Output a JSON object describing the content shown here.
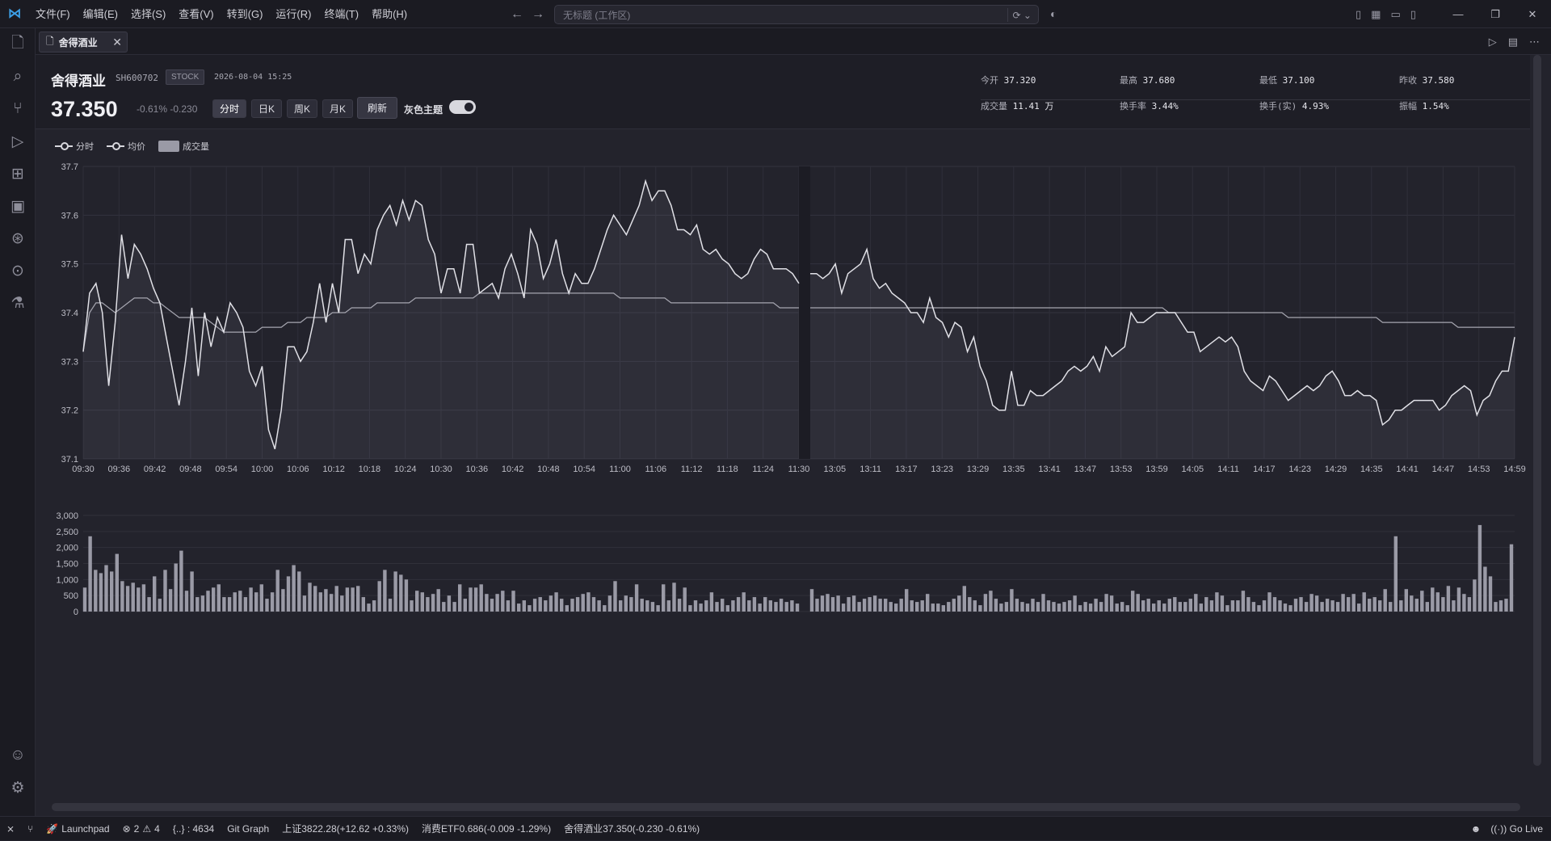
{
  "titlebar": {
    "menus": [
      "文件(F)",
      "编辑(E)",
      "选择(S)",
      "查看(V)",
      "转到(G)",
      "运行(R)",
      "终端(T)",
      "帮助(H)"
    ],
    "command_center": "无标题 (工作区)"
  },
  "tab": {
    "title": "舍得酒业"
  },
  "stock": {
    "name": "舍得酒业",
    "code": "SH600702",
    "type": "STOCK",
    "time": "2026-08-04 15:25",
    "price": "37.350",
    "change": "-0.61% -0.230",
    "periods": [
      "分时",
      "日K",
      "周K",
      "月K"
    ],
    "active_period": "分时",
    "refresh_label": "刷新",
    "theme_label": "灰色主题",
    "theme_toggle_on": true
  },
  "stats": {
    "open_k": "今开",
    "open_v": "37.320",
    "high_k": "最高",
    "high_v": "37.680",
    "low_k": "最低",
    "low_v": "37.100",
    "prev_k": "昨收",
    "prev_v": "37.580",
    "vol_k": "成交量",
    "vol_v": "11.41 万",
    "turn_k": "换手率",
    "turn_v": "3.44%",
    "turn_real_k": "换手(实)",
    "turn_real_v": "4.93%",
    "amp_k": "振幅",
    "amp_v": "1.54%"
  },
  "legend": {
    "line": "分时",
    "avg": "均价",
    "vol": "成交量"
  },
  "chart_data": {
    "type": "line",
    "ylim": [
      37.1,
      37.7
    ],
    "y_ticks": [
      "37.7",
      "37.6",
      "37.5",
      "37.4",
      "37.3",
      "37.2",
      "37.1"
    ],
    "x_ticks": [
      "09:30",
      "09:36",
      "09:42",
      "09:48",
      "09:54",
      "10:00",
      "10:06",
      "10:12",
      "10:18",
      "10:24",
      "10:30",
      "10:36",
      "10:42",
      "10:48",
      "10:54",
      "11:00",
      "11:06",
      "11:12",
      "11:18",
      "11:24",
      "11:30",
      "13:05",
      "13:11",
      "13:17",
      "13:23",
      "13:29",
      "13:35",
      "13:41",
      "13:47",
      "13:53",
      "13:59",
      "14:05",
      "14:11",
      "14:17",
      "14:23",
      "14:29",
      "14:35",
      "14:41",
      "14:47",
      "14:53",
      "14:59"
    ],
    "series": [
      {
        "name": "分时",
        "values": [
          37.32,
          37.44,
          37.46,
          37.4,
          37.25,
          37.38,
          37.56,
          37.47,
          37.54,
          37.52,
          37.49,
          37.45,
          37.42,
          37.35,
          37.28,
          37.21,
          37.3,
          37.41,
          37.27,
          37.4,
          37.33,
          37.39,
          37.36,
          37.42,
          37.4,
          37.37,
          37.28,
          37.25,
          37.29,
          37.16,
          37.12,
          37.2,
          37.33,
          37.33,
          37.3,
          37.32,
          37.38,
          37.46,
          37.38,
          37.46,
          37.4,
          37.55,
          37.55,
          37.48,
          37.52,
          37.5,
          37.57,
          37.6,
          37.62,
          37.58,
          37.63,
          37.59,
          37.63,
          37.62,
          37.55,
          37.52,
          37.44,
          37.49,
          37.49,
          37.44,
          37.54,
          37.54,
          37.44,
          37.45,
          37.46,
          37.43,
          37.49,
          37.52,
          37.48,
          37.43,
          37.57,
          37.54,
          37.47,
          37.5,
          37.55,
          37.48,
          37.44,
          37.48,
          37.46,
          37.46,
          37.49,
          37.53,
          37.57,
          37.6,
          37.58,
          37.56,
          37.59,
          37.62,
          37.67,
          37.63,
          37.65,
          37.65,
          37.62,
          37.57,
          37.57,
          37.56,
          37.58,
          37.53,
          37.52,
          37.53,
          37.51,
          37.5,
          37.48,
          37.47,
          37.48,
          37.51,
          37.53,
          37.52,
          37.49,
          37.49,
          37.49,
          37.48,
          37.46,
          37.48,
          37.48,
          37.47,
          37.48,
          37.5,
          37.44,
          37.48,
          37.49,
          37.5,
          37.53,
          37.47,
          37.45,
          37.46,
          37.44,
          37.43,
          37.42,
          37.4,
          37.4,
          37.38,
          37.43,
          37.39,
          37.38,
          37.35,
          37.38,
          37.37,
          37.32,
          37.35,
          37.29,
          37.26,
          37.21,
          37.2,
          37.2,
          37.28,
          37.21,
          37.21,
          37.24,
          37.23,
          37.23,
          37.24,
          37.25,
          37.26,
          37.28,
          37.29,
          37.28,
          37.29,
          37.31,
          37.28,
          37.33,
          37.31,
          37.32,
          37.33,
          37.4,
          37.38,
          37.38,
          37.39,
          37.4,
          37.4,
          37.4,
          37.4,
          37.38,
          37.36,
          37.36,
          37.32,
          37.33,
          37.34,
          37.35,
          37.34,
          37.35,
          37.33,
          37.28,
          37.26,
          37.25,
          37.24,
          37.27,
          37.26,
          37.24,
          37.22,
          37.23,
          37.24,
          37.25,
          37.24,
          37.25,
          37.27,
          37.28,
          37.26,
          37.23,
          37.23,
          37.24,
          37.23,
          37.23,
          37.22,
          37.17,
          37.18,
          37.2,
          37.2,
          37.21,
          37.22,
          37.22,
          37.22,
          37.22,
          37.2,
          37.21,
          37.23,
          37.24,
          37.25,
          37.24,
          37.19,
          37.22,
          37.23,
          37.26,
          37.28,
          37.28,
          37.35
        ]
      },
      {
        "name": "均价",
        "values": [
          37.32,
          37.4,
          37.42,
          37.42,
          37.41,
          37.4,
          37.41,
          37.42,
          37.43,
          37.43,
          37.43,
          37.42,
          37.42,
          37.41,
          37.4,
          37.39,
          37.39,
          37.39,
          37.39,
          37.39,
          37.38,
          37.37,
          37.36,
          37.36,
          37.36,
          37.36,
          37.36,
          37.36,
          37.37,
          37.37,
          37.37,
          37.37,
          37.38,
          37.38,
          37.38,
          37.39,
          37.39,
          37.39,
          37.39,
          37.4,
          37.4,
          37.4,
          37.41,
          37.41,
          37.41,
          37.41,
          37.42,
          37.42,
          37.42,
          37.42,
          37.42,
          37.42,
          37.43,
          37.43,
          37.43,
          37.43,
          37.43,
          37.43,
          37.43,
          37.43,
          37.43,
          37.43,
          37.44,
          37.44,
          37.44,
          37.44,
          37.44,
          37.44,
          37.44,
          37.44,
          37.44,
          37.44,
          37.44,
          37.44,
          37.44,
          37.44,
          37.44,
          37.44,
          37.44,
          37.44,
          37.44,
          37.44,
          37.44,
          37.44,
          37.43,
          37.43,
          37.43,
          37.43,
          37.43,
          37.43,
          37.43,
          37.43,
          37.42,
          37.42,
          37.42,
          37.42,
          37.42,
          37.42,
          37.42,
          37.42,
          37.42,
          37.42,
          37.42,
          37.42,
          37.42,
          37.42,
          37.42,
          37.42,
          37.42,
          37.41,
          37.41,
          37.41,
          37.41,
          37.41,
          37.41,
          37.41,
          37.41,
          37.41,
          37.41,
          37.41,
          37.41,
          37.41,
          37.41,
          37.41,
          37.41,
          37.41,
          37.41,
          37.41,
          37.41,
          37.41,
          37.41,
          37.41,
          37.41,
          37.41,
          37.41,
          37.41,
          37.41,
          37.41,
          37.41,
          37.41,
          37.41,
          37.41,
          37.41,
          37.41,
          37.41,
          37.41,
          37.41,
          37.41,
          37.41,
          37.41,
          37.41,
          37.41,
          37.41,
          37.41,
          37.41,
          37.41,
          37.41,
          37.41,
          37.41,
          37.41,
          37.41,
          37.41,
          37.41,
          37.41,
          37.41,
          37.41,
          37.41,
          37.41,
          37.41,
          37.41,
          37.4,
          37.4,
          37.4,
          37.4,
          37.4,
          37.4,
          37.4,
          37.4,
          37.4,
          37.4,
          37.4,
          37.4,
          37.4,
          37.4,
          37.4,
          37.4,
          37.4,
          37.4,
          37.4,
          37.39,
          37.39,
          37.39,
          37.39,
          37.39,
          37.39,
          37.39,
          37.39,
          37.39,
          37.39,
          37.39,
          37.39,
          37.39,
          37.39,
          37.39,
          37.38,
          37.38,
          37.38,
          37.38,
          37.38,
          37.38,
          37.38,
          37.38,
          37.38,
          37.38,
          37.38,
          37.38,
          37.37,
          37.37,
          37.37,
          37.37,
          37.37,
          37.37,
          37.37,
          37.37,
          37.37,
          37.37,
          37.37
        ]
      }
    ],
    "volume_ticks": [
      "3,000",
      "2,500",
      "2,000",
      "1,500",
      "1,000",
      "500",
      "0"
    ],
    "volume_max": 3000,
    "volume": [
      750,
      2350,
      1300,
      1200,
      1450,
      1250,
      1800,
      950,
      800,
      900,
      750,
      850,
      450,
      1100,
      400,
      1300,
      700,
      1500,
      1900,
      650,
      1250,
      450,
      500,
      650,
      750,
      850,
      450,
      450,
      600,
      650,
      450,
      750,
      600,
      850,
      400,
      600,
      1300,
      700,
      1100,
      1450,
      1250,
      500,
      900,
      800,
      600,
      700,
      550,
      800,
      500,
      750,
      750,
      800,
      450,
      250,
      350,
      950,
      1300,
      400,
      1250,
      1150,
      1000,
      350,
      650,
      600,
      450,
      550,
      700,
      300,
      500,
      300,
      850,
      400,
      750,
      750,
      850,
      550,
      400,
      550,
      650,
      350,
      650,
      250,
      350,
      200,
      400,
      450,
      350,
      500,
      600,
      400,
      200,
      400,
      450,
      550,
      600,
      450,
      350,
      200,
      500,
      950,
      350,
      500,
      450,
      850,
      400,
      350,
      300,
      200,
      850,
      350,
      900,
      400,
      750,
      200,
      350,
      250,
      350,
      600,
      300,
      400,
      200,
      350,
      450,
      600,
      350,
      450,
      250,
      450,
      350,
      300,
      400,
      300,
      350,
      250,
      700,
      400,
      500,
      550,
      450,
      500,
      250,
      450,
      500,
      300,
      400,
      450,
      500,
      400,
      400,
      300,
      250,
      400,
      700,
      350,
      300,
      350,
      550,
      250,
      250,
      200,
      300,
      400,
      500,
      800,
      450,
      350,
      200,
      550,
      650,
      400,
      250,
      300,
      700,
      400,
      300,
      250,
      400,
      300,
      550,
      350,
      300,
      250,
      300,
      350,
      500,
      200,
      300,
      250,
      400,
      300,
      550,
      500,
      250,
      300,
      200,
      650,
      550,
      350,
      400,
      250,
      350,
      250,
      400,
      450,
      300,
      300,
      400,
      550,
      250,
      450,
      350,
      600,
      500,
      200,
      350,
      350,
      650,
      450,
      300,
      200,
      350,
      600,
      450,
      350,
      250,
      200,
      400,
      450,
      300,
      550,
      500,
      300,
      400,
      350,
      300,
      550,
      450,
      550,
      250,
      600,
      400,
      450,
      350,
      700,
      300,
      2350,
      350,
      700,
      500,
      400,
      650,
      300,
      750,
      600,
      450,
      800,
      350,
      750,
      550,
      450,
      1000,
      2700,
      1400,
      1100,
      300,
      350,
      400,
      2100
    ]
  },
  "statusbar": {
    "launchpad": "Launchpad",
    "errors": "2",
    "warnings": "4",
    "braces": "{..} : 4634",
    "git_graph": "Git Graph",
    "index1": "上证3822.28(+12.62 +0.33%)",
    "index2": "消费ETF0.686(-0.009 -1.29%)",
    "index3": "舍得酒业37.350(-0.230 -0.61%)",
    "go_live": "Go Live"
  }
}
